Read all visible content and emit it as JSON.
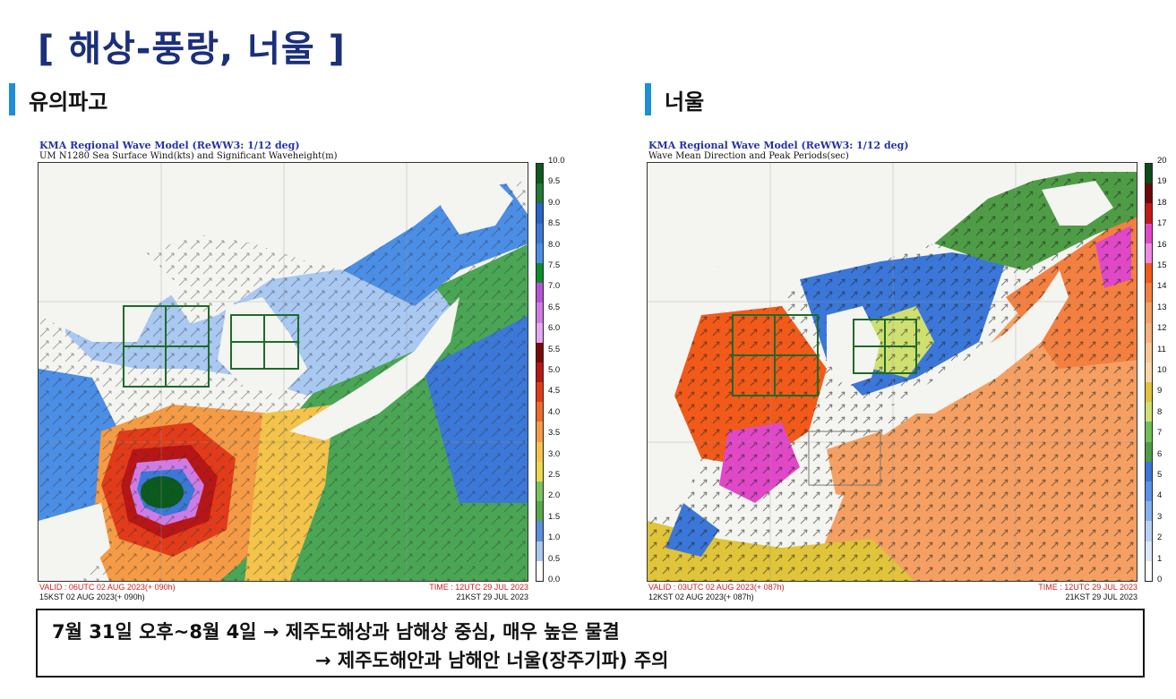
{
  "page": {
    "title": "[ 해상-풍랑, 너울 ]"
  },
  "sections": {
    "left_label": "유의파고",
    "right_label": "너울"
  },
  "left_panel": {
    "header_title": "KMA Regional Wave Model (ReWW3: 1/12 deg)",
    "header_sub": "UM N1280 Sea Surface Wind(kts) and Significant Waveheight(m)",
    "scale_ticks": [
      "10.0",
      "9.5",
      "9.0",
      "8.5",
      "8.0",
      "7.5",
      "7.0",
      "6.5",
      "6.0",
      "5.5",
      "5.0",
      "4.5",
      "4.0",
      "3.5",
      "3.0",
      "2.5",
      "2.0",
      "1.5",
      "1.0",
      "0.5",
      "0.0"
    ],
    "scale_colors": [
      "#0b5a1e",
      "#1e7a36",
      "#2a63c9",
      "#3b78d8",
      "#4b8ee6",
      "#0a8f2b",
      "#b553d8",
      "#cf7be6",
      "#e6a6f0",
      "#7a0a0a",
      "#b81616",
      "#e23b1a",
      "#f06a2a",
      "#f59b45",
      "#f3c34a",
      "#ecd84a",
      "#7cc25a",
      "#5aa84a",
      "#5b8fe0",
      "#a9c8f2",
      "#ffffff"
    ],
    "valid_text": "VALID : 06UTC 02 AUG 2023(+ 090h)",
    "valid_kst": "15KST 02 AUG 2023(+ 090h)",
    "time_text": "TIME : 12UTC 29 JUL 2023",
    "time_kst": "21KST 29 JUL 2023"
  },
  "right_panel": {
    "header_title": "KMA Regional Wave Model (ReWW3: 1/12 deg)",
    "header_sub": "Wave Mean Direction and Peak Periods(sec)",
    "scale_ticks": [
      "20",
      "19",
      "18",
      "17",
      "16",
      "15",
      "14",
      "13",
      "12",
      "11",
      "10",
      "9",
      "8",
      "7",
      "6",
      "5",
      "4",
      "3",
      "2",
      "1",
      "0"
    ],
    "scale_colors": [
      "#0b4d18",
      "#6e0a0a",
      "#c21a1a",
      "#e048c8",
      "#f08ae0",
      "#f25a1a",
      "#f38040",
      "#f5a062",
      "#f6b27a",
      "#f7c896",
      "#f8d6a8",
      "#e0c43a",
      "#cfe070",
      "#6fbf55",
      "#4e9d46",
      "#3b77d8",
      "#5a93e6",
      "#86b0ee",
      "#b8d0f5",
      "#dbe8fb",
      "#ffffff"
    ],
    "valid_text": "VALID : 03UTC 02 AUG 2023(+ 087h)",
    "valid_kst": "12KST 02 AUG 2023(+ 087h)",
    "time_text": "TIME : 12UTC 29 JUL 2023",
    "time_kst": "21KST 29 JUL 2023"
  },
  "summary": {
    "line1": "7월 31일 오후~8월 4일 → 제주도해상과 남해상 중심, 매우 높은 물결",
    "line2": "→ 제주도해안과 남해안 너울(장주기파) 주의"
  }
}
